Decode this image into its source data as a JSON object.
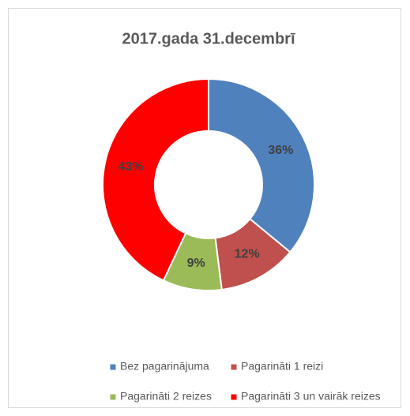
{
  "chart_data": {
    "type": "donut",
    "title": "2017.gada 31.decembrī",
    "categories": [
      "Bez pagarinājuma",
      "Pagarināti 1 reizi",
      "Pagarināti 2 reizes",
      "Pagarināti 3 un vairāk reizes"
    ],
    "values": [
      36,
      12,
      9,
      43
    ],
    "value_labels": [
      "36%",
      "12%",
      "9%",
      "43%"
    ],
    "colors": [
      "#4f81bd",
      "#c0504d",
      "#9bbb59",
      "#ff0000"
    ],
    "legend": "bottom"
  }
}
